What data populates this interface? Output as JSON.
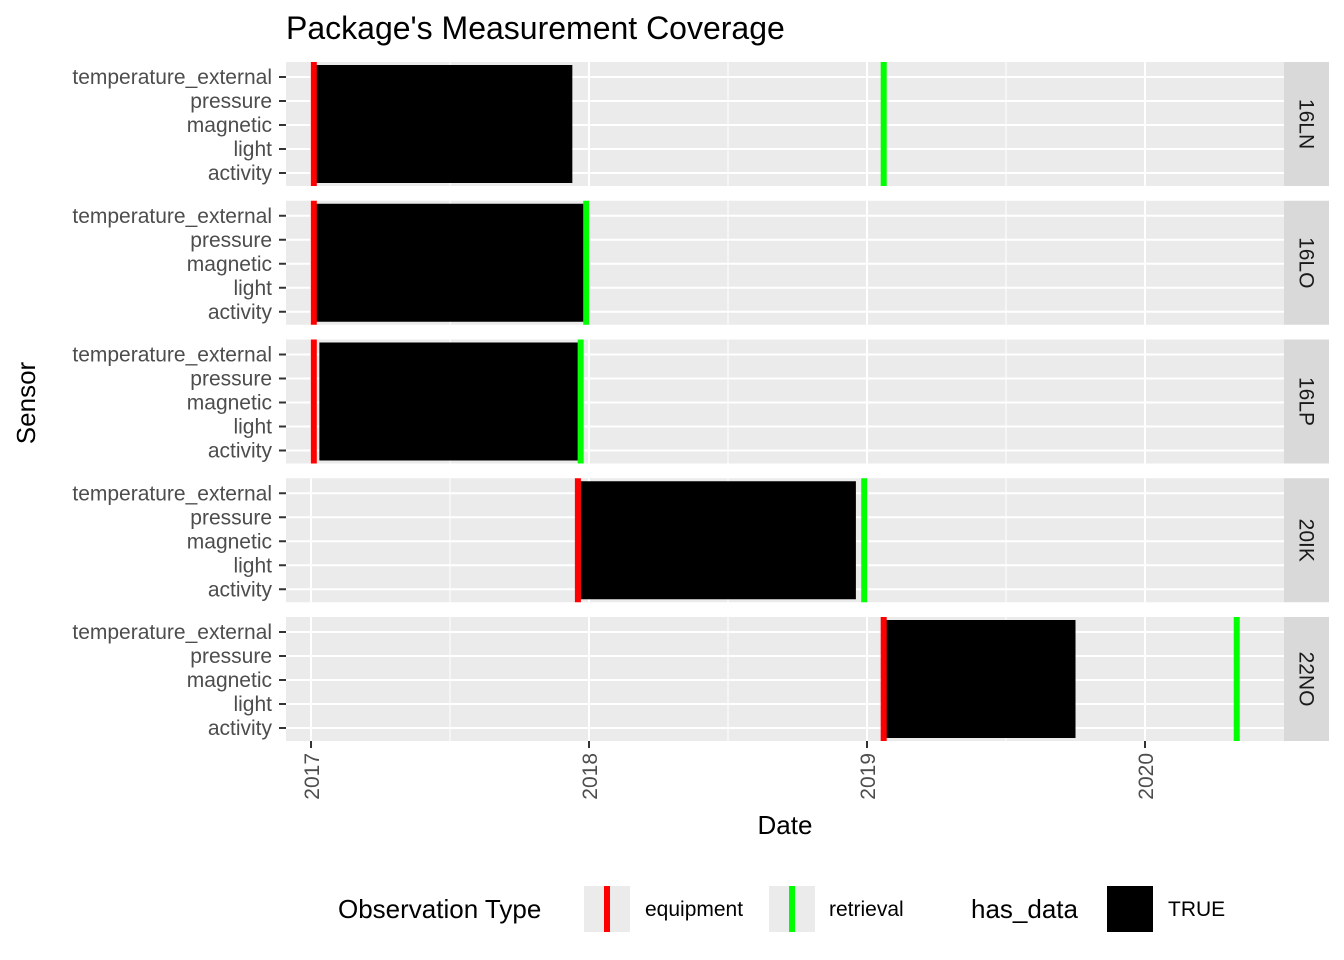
{
  "chart_data": {
    "type": "gantt",
    "title": "Package's Measurement Coverage",
    "xlabel": "Date",
    "ylabel": "Sensor",
    "x_ticks": [
      "2017",
      "2018",
      "2019",
      "2020"
    ],
    "xlim": [
      2016.91,
      2020.5
    ],
    "sensors": [
      "temperature_external",
      "pressure",
      "magnetic",
      "light",
      "activity"
    ],
    "panels": [
      {
        "id": "16LN",
        "has_data": {
          "start": 2017.01,
          "end": 2017.94
        },
        "equipment": 2017.01,
        "retrieval": 2019.06
      },
      {
        "id": "16LO",
        "has_data": {
          "start": 2017.01,
          "end": 2017.98
        },
        "equipment": 2017.01,
        "retrieval": 2017.99
      },
      {
        "id": "16LP",
        "has_data": {
          "start": 2017.03,
          "end": 2017.96
        },
        "equipment": 2017.01,
        "retrieval": 2017.97
      },
      {
        "id": "20IK",
        "has_data": {
          "start": 2017.97,
          "end": 2018.96
        },
        "equipment": 2017.96,
        "retrieval": 2018.99
      },
      {
        "id": "22NO",
        "has_data": {
          "start": 2019.07,
          "end": 2019.75
        },
        "equipment": 2019.06,
        "retrieval": 2020.33
      }
    ],
    "legend": {
      "observation_title": "Observation Type",
      "observation_items": [
        {
          "label": "equipment",
          "color": "#ff0000"
        },
        {
          "label": "retrieval",
          "color": "#00ff00"
        }
      ],
      "data_title": "has_data",
      "data_items": [
        {
          "label": "TRUE",
          "color": "#000000"
        }
      ],
      "position": "bottom"
    },
    "grid": true,
    "panel_background": "#ebebeb",
    "strip_background": "#d9d9d9"
  }
}
